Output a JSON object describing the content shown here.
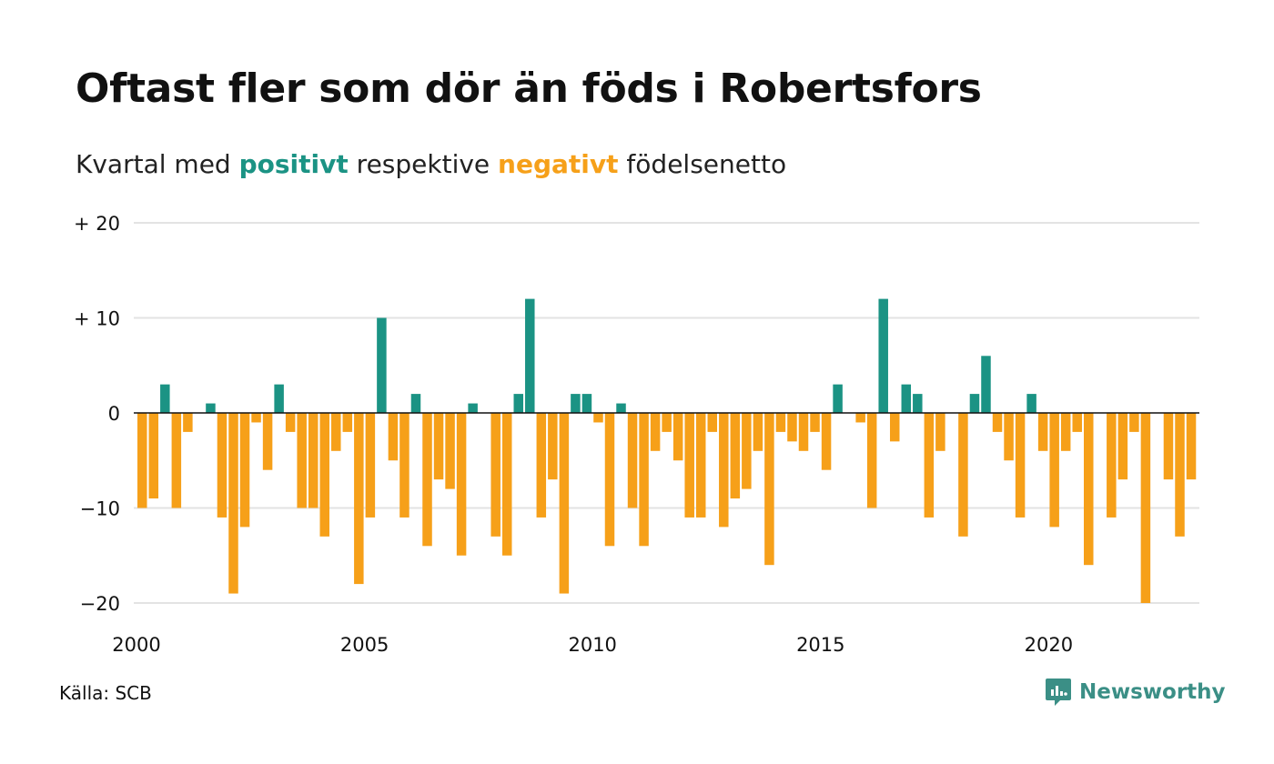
{
  "title": "Oftast fler som dör än föds i Robertsfors",
  "subtitle": {
    "prefix": "Kvartal med ",
    "positive": "positivt",
    "middle": " respektive ",
    "negative": "negativt",
    "suffix": " födelsenetto"
  },
  "source": "Källa: SCB",
  "brand": "Newsworthy",
  "colors": {
    "positive": "#1b9384",
    "negative": "#f6a019",
    "grid": "#e3e3e3",
    "brand": "#3b8f86"
  },
  "chart_data": {
    "type": "bar",
    "x_start": "2000 Q1",
    "x_ticks": [
      "2000",
      "2005",
      "2010",
      "2015",
      "2020"
    ],
    "y_ticks": [
      "+ 20",
      "+ 10",
      "0",
      "−10",
      "−20"
    ],
    "y_tick_values": [
      20,
      10,
      0,
      -10,
      -20
    ],
    "ylim": [
      -20,
      20
    ],
    "values": [
      -10,
      -9,
      3,
      -10,
      -2,
      0,
      1,
      -11,
      -19,
      -12,
      -1,
      -6,
      3,
      -2,
      -10,
      -10,
      -13,
      -4,
      -2,
      -18,
      -11,
      10,
      -5,
      -11,
      2,
      -14,
      -7,
      -8,
      -15,
      1,
      0,
      -13,
      -15,
      2,
      12,
      -11,
      -7,
      -19,
      2,
      2,
      -1,
      -14,
      1,
      -10,
      -14,
      -4,
      -2,
      -5,
      -11,
      -11,
      -2,
      -12,
      -9,
      -8,
      -4,
      -16,
      -2,
      -3,
      -4,
      -2,
      -6,
      3,
      0,
      -1,
      -10,
      12,
      -3,
      3,
      2,
      -11,
      -4,
      0,
      -13,
      2,
      6,
      -2,
      -5,
      -11,
      2,
      -4,
      -12,
      -4,
      -2,
      -16,
      0,
      -11,
      -7,
      -2,
      -20,
      0,
      -7,
      -13,
      -7
    ]
  }
}
